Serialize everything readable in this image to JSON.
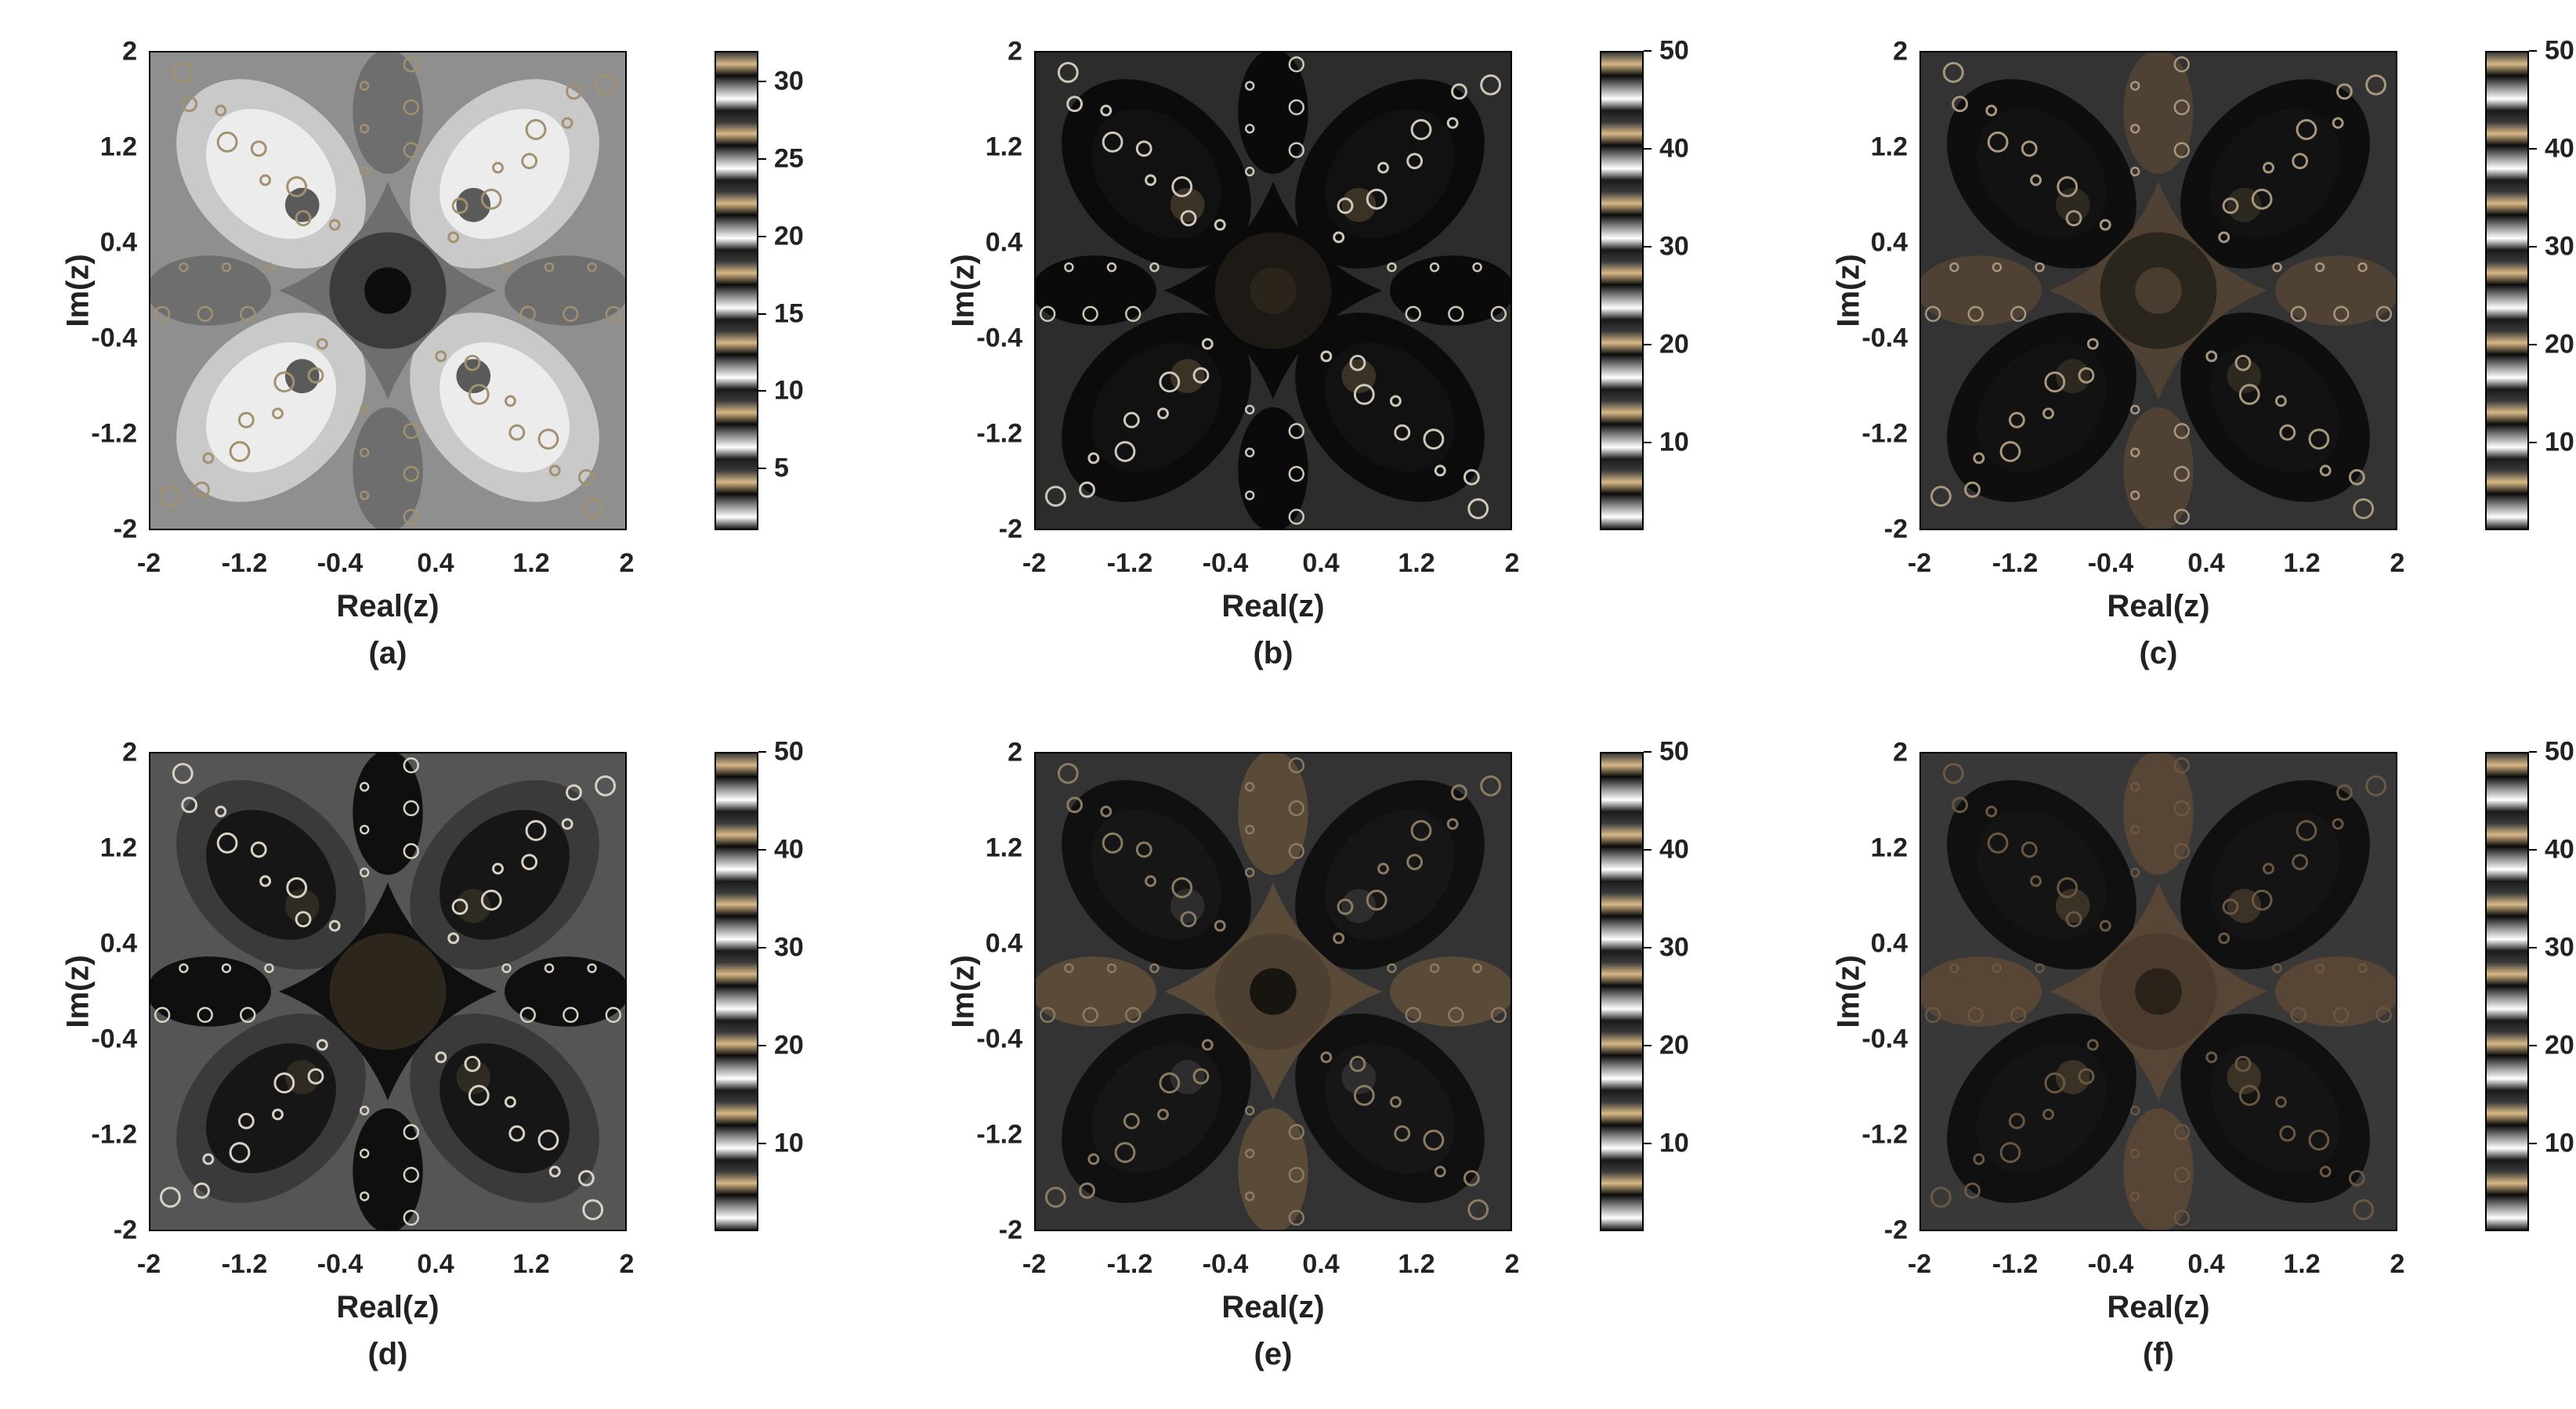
{
  "figure": {
    "axis": {
      "xlabel": "Real(z)",
      "ylabel": "Im(z)",
      "xticks": [
        "-2",
        "-1.2",
        "-0.4",
        "0.4",
        "1.2",
        "2"
      ],
      "yticks": [
        "2",
        "1.2",
        "0.4",
        "-0.4",
        "-1.2",
        "-2"
      ],
      "xlim": [
        -2,
        2
      ],
      "ylim": [
        -2,
        2
      ]
    },
    "colormap": [
      "#1a1a1a",
      "#ffffff",
      "#8a8a8a",
      "#0a0a0a",
      "#d8b886",
      "#3a3a3a"
    ],
    "panels": [
      {
        "caption": "(a)",
        "colorbar": {
          "ticks": [
            "5",
            "10",
            "15",
            "20",
            "25",
            "30"
          ],
          "values": [
            5,
            10,
            15,
            20,
            25,
            30
          ],
          "range": [
            1,
            32
          ]
        },
        "palette": {
          "bg": "#8f8f8f",
          "lobe_outer": "#c9c9c9",
          "lobe_mid": "#ececec",
          "lobe_core": "#5a5a5a",
          "center_ring": "#6e6e6e",
          "center_core": "#3c3c3c",
          "center_dot": "#0d0d0d",
          "fractal": "#a2916f"
        }
      },
      {
        "caption": "(b)",
        "colorbar": {
          "ticks": [
            "10",
            "20",
            "30",
            "40",
            "50"
          ],
          "values": [
            10,
            20,
            30,
            40,
            50
          ],
          "range": [
            1,
            50
          ]
        },
        "palette": {
          "bg": "#2c2c2c",
          "lobe_outer": "#0b0b0b",
          "lobe_mid": "#111111",
          "lobe_core": "#3b3226",
          "center_ring": "#0a0a0a",
          "center_core": "#1d1a15",
          "center_dot": "#2a241b",
          "fractal": "#cfc7b8"
        }
      },
      {
        "caption": "(c)",
        "colorbar": {
          "ticks": [
            "10",
            "20",
            "30",
            "40",
            "50"
          ],
          "values": [
            10,
            20,
            30,
            40,
            50
          ],
          "range": [
            1,
            50
          ]
        },
        "palette": {
          "bg": "#333333",
          "lobe_outer": "#0e0e0e",
          "lobe_mid": "#121212",
          "lobe_core": "#2d2820",
          "center_ring": "#4f4234",
          "center_core": "#2a251d",
          "center_dot": "#4a3d2f",
          "fractal": "#a8977c"
        }
      },
      {
        "caption": "(d)",
        "colorbar": {
          "ticks": [
            "10",
            "20",
            "30",
            "40",
            "50"
          ],
          "values": [
            10,
            20,
            30,
            40,
            50
          ],
          "range": [
            1,
            50
          ]
        },
        "palette": {
          "bg": "#555555",
          "lobe_outer": "#3a3a3a",
          "lobe_mid": "#161616",
          "lobe_core": "#2f2a22",
          "center_ring": "#0f0f0f",
          "center_core": "#2c261d",
          "center_dot": "#2c261d",
          "fractal": "#d9d2c4"
        }
      },
      {
        "caption": "(e)",
        "colorbar": {
          "ticks": [
            "10",
            "20",
            "30",
            "40",
            "50"
          ],
          "values": [
            10,
            20,
            30,
            40,
            50
          ],
          "range": [
            1,
            50
          ]
        },
        "palette": {
          "bg": "#333333",
          "lobe_outer": "#101010",
          "lobe_mid": "#161616",
          "lobe_core": "#2d2d2d",
          "center_ring": "#5a4a38",
          "center_core": "#4e4031",
          "center_dot": "#181410",
          "fractal": "#8c7b63"
        }
      },
      {
        "caption": "(f)",
        "colorbar": {
          "ticks": [
            "10",
            "20",
            "30",
            "40",
            "50"
          ],
          "values": [
            10,
            20,
            30,
            40,
            50
          ],
          "range": [
            1,
            50
          ]
        },
        "palette": {
          "bg": "#383838",
          "lobe_outer": "#101010",
          "lobe_mid": "#141414",
          "lobe_core": "#3b3226",
          "center_ring": "#574636",
          "center_core": "#4a3b2c",
          "center_dot": "#2a2119",
          "fractal": "#6b5843"
        }
      }
    ]
  }
}
